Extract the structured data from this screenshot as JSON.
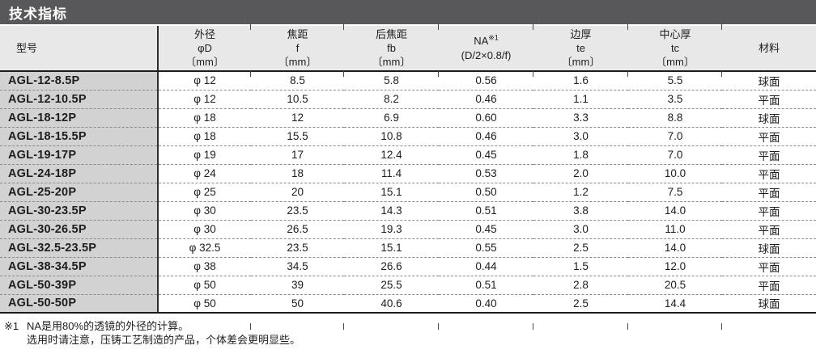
{
  "title": "技术指标",
  "colors": {
    "title_bar_bg": "#58585a",
    "title_text": "#ffffff",
    "header_bg": "#e8e8e8",
    "model_col_bg": "#d2d2d2",
    "rule_dark": "#1c1c1c",
    "row_divider": "#8a8a8a",
    "text": "#1d1d1d"
  },
  "table": {
    "columns": [
      {
        "name": "model",
        "label_lines": [
          "型号"
        ],
        "align": "left"
      },
      {
        "name": "outer-diameter",
        "label_lines": [
          "外径",
          "φD",
          "〔mm〕"
        ]
      },
      {
        "name": "focal-length",
        "label_lines": [
          "焦距",
          "f",
          "〔mm〕"
        ]
      },
      {
        "name": "back-focal-length",
        "label_lines": [
          "后焦距",
          "fb",
          "〔mm〕"
        ]
      },
      {
        "name": "na",
        "label_lines": [
          "NA",
          "(D/2×0.8/f)"
        ],
        "superscript": "※1"
      },
      {
        "name": "edge-thickness",
        "label_lines": [
          "边厚",
          "te",
          "〔mm〕"
        ]
      },
      {
        "name": "center-thickness",
        "label_lines": [
          "中心厚",
          "tc",
          "〔mm〕"
        ]
      },
      {
        "name": "material",
        "label_lines": [
          "材料"
        ]
      }
    ],
    "rows": [
      [
        "AGL-12-8.5P",
        "φ 12",
        "8.5",
        "5.8",
        "0.56",
        "1.6",
        "5.5",
        "球面"
      ],
      [
        "AGL-12-10.5P",
        "φ 12",
        "10.5",
        "8.2",
        "0.46",
        "1.1",
        "3.5",
        "平面"
      ],
      [
        "AGL-18-12P",
        "φ 18",
        "12",
        "6.9",
        "0.60",
        "3.3",
        "8.8",
        "球面"
      ],
      [
        "AGL-18-15.5P",
        "φ 18",
        "15.5",
        "10.8",
        "0.46",
        "3.0",
        "7.0",
        "平面"
      ],
      [
        "AGL-19-17P",
        "φ 19",
        "17",
        "12.4",
        "0.45",
        "1.8",
        "7.0",
        "平面"
      ],
      [
        "AGL-24-18P",
        "φ 24",
        "18",
        "11.4",
        "0.53",
        "2.0",
        "10.0",
        "平面"
      ],
      [
        "AGL-25-20P",
        "φ 25",
        "20",
        "15.1",
        "0.50",
        "1.2",
        "7.5",
        "平面"
      ],
      [
        "AGL-30-23.5P",
        "φ 30",
        "23.5",
        "14.3",
        "0.51",
        "3.8",
        "14.0",
        "平面"
      ],
      [
        "AGL-30-26.5P",
        "φ 30",
        "26.5",
        "19.3",
        "0.45",
        "3.0",
        "11.0",
        "平面"
      ],
      [
        "AGL-32.5-23.5P",
        "φ 32.5",
        "23.5",
        "15.1",
        "0.55",
        "2.5",
        "14.0",
        "球面"
      ],
      [
        "AGL-38-34.5P",
        "φ 38",
        "34.5",
        "26.6",
        "0.44",
        "1.5",
        "12.0",
        "平面"
      ],
      [
        "AGL-50-39P",
        "φ 50",
        "39",
        "25.5",
        "0.51",
        "2.8",
        "20.5",
        "平面"
      ],
      [
        "AGL-50-50P",
        "φ 50",
        "50",
        "40.6",
        "0.40",
        "2.5",
        "14.4",
        "球面"
      ]
    ]
  },
  "footnotes": {
    "mark": "※1",
    "line1": "NA是用80%的透镜的外径的计算。",
    "line2": "选用时请注意，压铸工艺制造的产品，个体差会更明显些。"
  }
}
